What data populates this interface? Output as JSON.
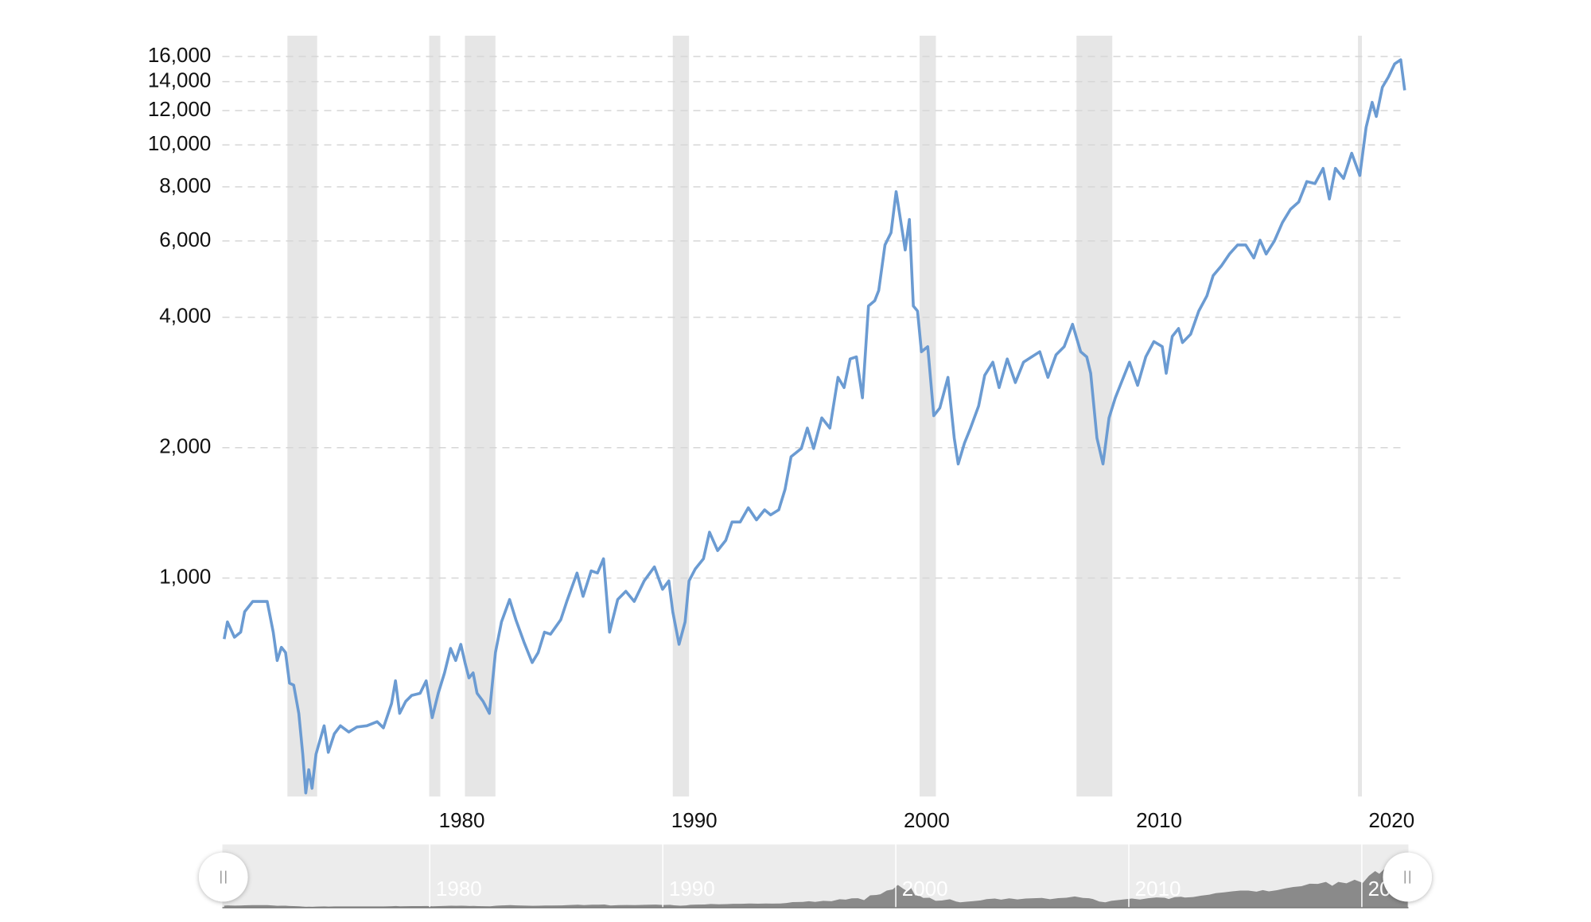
{
  "chart_data": {
    "type": "line",
    "log_scale": true,
    "grid": true,
    "color": "#6b9bd2",
    "band_color": "#e6e6e6",
    "xlim": [
      1971.1,
      2022.0
    ],
    "xticks": [
      1980,
      1990,
      2000,
      2010,
      2020
    ],
    "ylim": [
      313,
      17870
    ],
    "yticks": [
      {
        "value": 1000,
        "label": "1,000"
      },
      {
        "value": 2000,
        "label": "2,000"
      },
      {
        "value": 4000,
        "label": "4,000"
      },
      {
        "value": 6000,
        "label": "6,000"
      },
      {
        "value": 8000,
        "label": "8,000"
      },
      {
        "value": 10000,
        "label": "10,000"
      },
      {
        "value": 12000,
        "label": "12,000"
      },
      {
        "value": 14000,
        "label": "14,000"
      },
      {
        "value": 16000,
        "label": "16,000"
      }
    ],
    "shaded_ranges": [
      [
        1973.9,
        1975.18
      ],
      [
        1980.0,
        1980.48
      ],
      [
        1981.54,
        1982.85
      ],
      [
        1990.48,
        1991.18
      ],
      [
        2001.1,
        2001.8
      ],
      [
        2007.85,
        2009.39
      ],
      [
        2019.96,
        2020.13
      ]
    ],
    "x": [
      1971.18,
      1971.32,
      1971.62,
      1971.89,
      1972.06,
      1972.41,
      1972.72,
      1973.03,
      1973.29,
      1973.46,
      1973.64,
      1973.82,
      1973.99,
      1974.17,
      1974.39,
      1974.56,
      1974.69,
      1974.82,
      1974.96,
      1975.13,
      1975.48,
      1975.66,
      1975.92,
      1976.18,
      1976.54,
      1976.89,
      1977.32,
      1977.76,
      1978.03,
      1978.38,
      1978.55,
      1978.73,
      1978.99,
      1979.25,
      1979.61,
      1979.87,
      1980.13,
      1980.39,
      1980.66,
      1980.92,
      1981.14,
      1981.36,
      1981.54,
      1981.71,
      1981.89,
      1982.06,
      1982.32,
      1982.59,
      1982.85,
      1983.11,
      1983.46,
      1983.73,
      1984.08,
      1984.43,
      1984.69,
      1984.96,
      1985.22,
      1985.66,
      1985.92,
      1986.36,
      1986.62,
      1986.97,
      1987.24,
      1987.5,
      1987.76,
      1988.11,
      1988.46,
      1988.82,
      1989.25,
      1989.69,
      1990.04,
      1990.31,
      1990.48,
      1990.75,
      1991.01,
      1991.18,
      1991.45,
      1991.8,
      1992.06,
      1992.41,
      1992.76,
      1993.03,
      1993.38,
      1993.73,
      1994.08,
      1994.43,
      1994.69,
      1995.04,
      1995.31,
      1995.57,
      1996.01,
      1996.27,
      1996.54,
      1996.89,
      1997.24,
      1997.59,
      1997.85,
      1998.11,
      1998.38,
      1998.64,
      1998.9,
      1999.17,
      1999.34,
      1999.61,
      1999.87,
      2000.09,
      2000.31,
      2000.48,
      2000.66,
      2000.83,
      2001.01,
      2001.18,
      2001.45,
      2001.71,
      2001.97,
      2002.32,
      2002.59,
      2002.76,
      2003.03,
      2003.29,
      2003.64,
      2003.9,
      2004.25,
      2004.52,
      2004.87,
      2005.22,
      2005.57,
      2005.92,
      2006.27,
      2006.62,
      2006.97,
      2007.32,
      2007.68,
      2008.03,
      2008.29,
      2008.46,
      2008.73,
      2008.99,
      2009.25,
      2009.52,
      2009.78,
      2010.13,
      2010.48,
      2010.83,
      2011.18,
      2011.54,
      2011.71,
      2011.97,
      2012.24,
      2012.41,
      2012.76,
      2013.11,
      2013.46,
      2013.73,
      2014.08,
      2014.43,
      2014.78,
      2015.13,
      2015.48,
      2015.75,
      2016.01,
      2016.36,
      2016.71,
      2017.06,
      2017.41,
      2017.76,
      2018.11,
      2018.46,
      2018.73,
      2018.99,
      2019.34,
      2019.69,
      2020.04,
      2020.31,
      2020.57,
      2020.75,
      2021.01,
      2021.27,
      2021.54,
      2021.8,
      2021.97
    ],
    "values": [
      723,
      792,
      730,
      750,
      836,
      883,
      883,
      883,
      750,
      645,
      692,
      673,
      572,
      566,
      487,
      392,
      319,
      361,
      327,
      392,
      456,
      396,
      437,
      456,
      441,
      453,
      456,
      466,
      451,
      513,
      579,
      487,
      519,
      536,
      542,
      579,
      476,
      542,
      604,
      688,
      645,
      703,
      638,
      588,
      604,
      542,
      519,
      487,
      673,
      792,
      892,
      801,
      711,
      638,
      673,
      750,
      742,
      801,
      883,
      1027,
      907,
      1039,
      1027,
      1108,
      750,
      892,
      932,
      883,
      985,
      1061,
      942,
      985,
      836,
      703,
      792,
      985,
      1050,
      1108,
      1276,
      1157,
      1222,
      1347,
      1347,
      1453,
      1362,
      1437,
      1399,
      1437,
      1602,
      1906,
      1991,
      2219,
      1991,
      2343,
      2219,
      2906,
      2752,
      3205,
      3241,
      2607,
      4247,
      4369,
      4611,
      5874,
      6268,
      7798,
      6548,
      5720,
      6726,
      4247,
      4134,
      3330,
      3422,
      2370,
      2470,
      2906,
      2105,
      1834,
      2049,
      2219,
      2497,
      2937,
      3150,
      2752,
      3205,
      2827,
      3150,
      3241,
      3330,
      2906,
      3277,
      3422,
      3854,
      3330,
      3241,
      2970,
      2105,
      1834,
      2343,
      2607,
      2827,
      3150,
      2785,
      3241,
      3515,
      3422,
      2970,
      3613,
      3768,
      3496,
      3655,
      4134,
      4481,
      4992,
      5254,
      5598,
      5874,
      5874,
      5483,
      6026,
      5598,
      5996,
      6620,
      7105,
      7381,
      8230,
      8141,
      8826,
      7501,
      8826,
      8366,
      9570,
      8500,
      10980,
      12540,
      11630,
      13590,
      14350,
      15390,
      15720,
      13370
    ]
  }
}
